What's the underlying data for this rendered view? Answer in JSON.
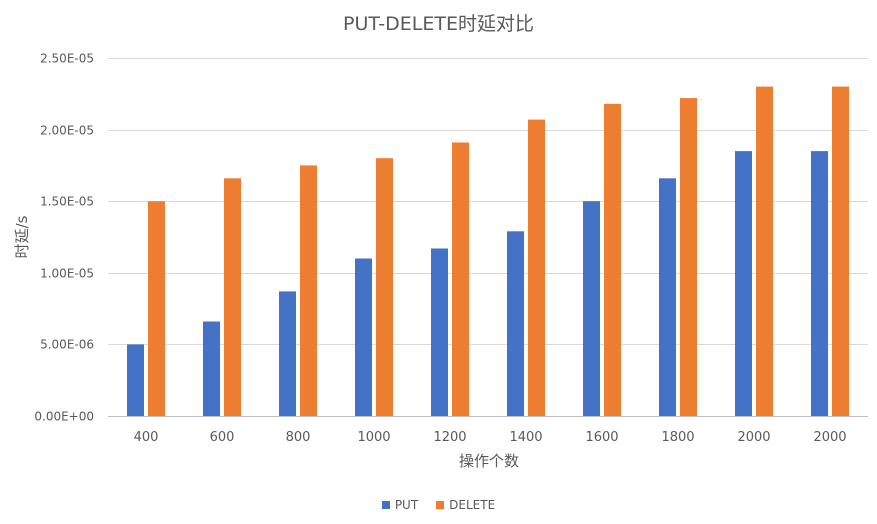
{
  "chart_data": {
    "type": "bar",
    "title": "PUT-DELETE时延对比",
    "xlabel": "操作个数",
    "ylabel": "时延/s",
    "categories": [
      "400",
      "600",
      "800",
      "1000",
      "1200",
      "1400",
      "1600",
      "1800",
      "2000",
      "2000"
    ],
    "series": [
      {
        "name": "PUT",
        "color": "#4472C4",
        "values": [
          5e-06,
          6.6e-06,
          8.7e-06,
          1.1e-05,
          1.17e-05,
          1.29e-05,
          1.5e-05,
          1.66e-05,
          1.85e-05,
          1.85e-05
        ]
      },
      {
        "name": "DELETE",
        "color": "#ED7D31",
        "values": [
          1.5e-05,
          1.66e-05,
          1.75e-05,
          1.8e-05,
          1.91e-05,
          2.07e-05,
          2.18e-05,
          2.22e-05,
          2.3e-05,
          2.3e-05
        ]
      }
    ],
    "ylim": [
      0,
      2.5e-05
    ],
    "yticks": [
      {
        "value": 0,
        "label": "0.00E+00"
      },
      {
        "value": 5e-06,
        "label": "5.00E-06"
      },
      {
        "value": 1e-05,
        "label": "1.00E-05"
      },
      {
        "value": 1.5e-05,
        "label": "1.50E-05"
      },
      {
        "value": 2e-05,
        "label": "2.00E-05"
      },
      {
        "value": 2.5e-05,
        "label": "2.50E-05"
      }
    ],
    "grid": true,
    "legend_position": "bottom"
  }
}
